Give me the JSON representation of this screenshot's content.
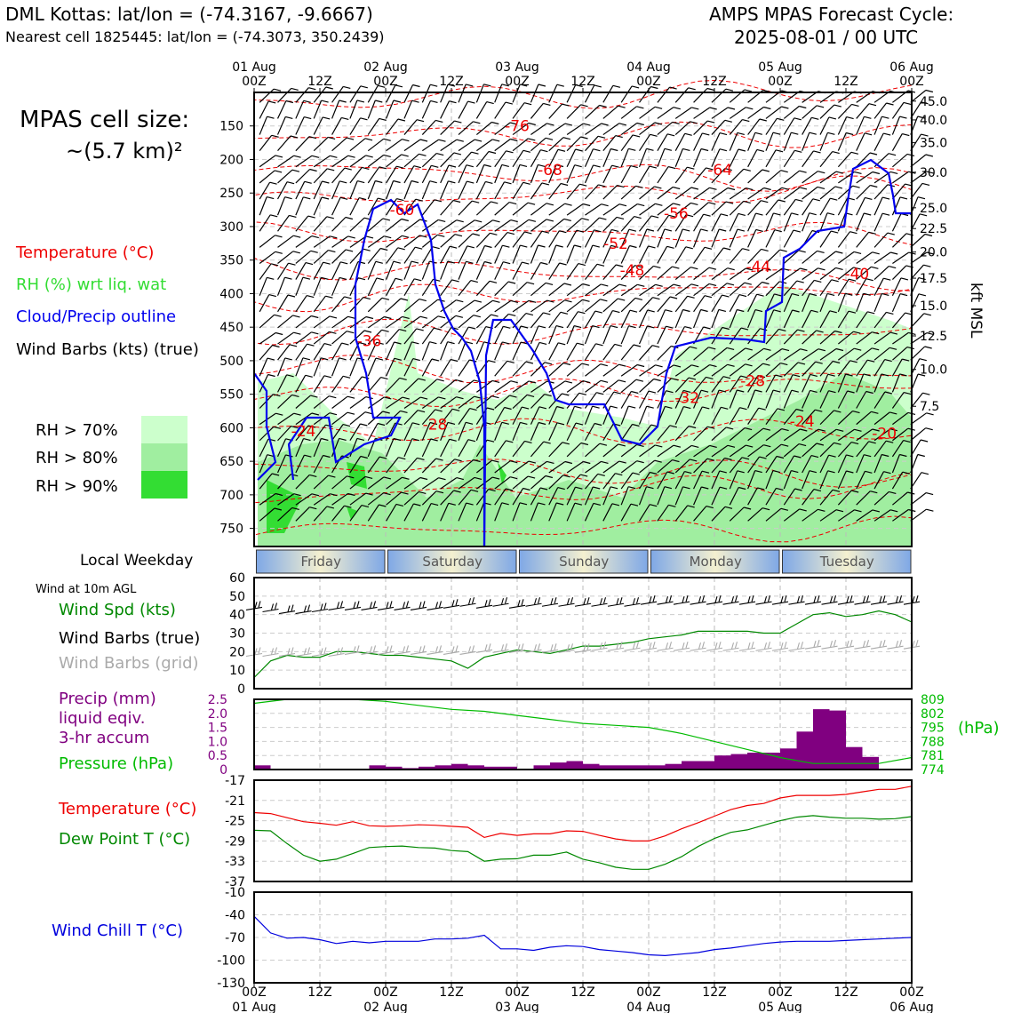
{
  "header": {
    "left_line1": "DML Kottas: lat/lon = (-74.3167, -9.6667)",
    "left_line2": "Nearest cell 1825445: lat/lon = (-74.3073, 350.2439)",
    "right_line1": "AMPS MPAS Forecast Cycle:",
    "right_line2": "2025-08-01 / 00 UTC"
  },
  "legend": {
    "cell_size_line1": "MPAS cell size:",
    "cell_size_line2": "~(5.7 km)²",
    "temperature": "Temperature (°C)",
    "rh": "RH (%) wrt liq. wat",
    "cloud": "Cloud/Precip outline",
    "wind": "Wind Barbs (kts) (true)",
    "rh70": "RH > 70%",
    "rh80": "RH > 80%",
    "rh90": "RH > 90%",
    "local_weekday": "Local Weekday",
    "wind10m_title": "Wind at 10m AGL",
    "wind_spd": "Wind Spd (kts)",
    "barbs_true": "Wind Barbs (true)",
    "barbs_grid": "Wind Barbs (grid)",
    "precip1": "Precip (mm)",
    "precip2": "liquid eqiv.",
    "precip3": "3-hr accum",
    "pressure": "Pressure (hPa)",
    "pressure_unit": "(hPa)",
    "temp2": "Temperature (°C)",
    "dewpoint": "Dew Point T (°C)",
    "windchill": "Wind Chill T (°C)",
    "kft": "kft MSL"
  },
  "colors": {
    "temp": "#ee0000",
    "rh70": "#ccffcc",
    "rh80": "#a0eea0",
    "rh90": "#33dd33",
    "cloud": "#0000ee",
    "precip": "#800080",
    "pressure": "#00bb00",
    "dew": "#008800",
    "chill": "#0000dd",
    "grid_barb": "#aaaaaa"
  },
  "chart_data": [
    {
      "type": "heatmap",
      "name": "cross-section",
      "top_ticks": [
        {
          "h": 0,
          "a": "01 Aug",
          "b": "00Z"
        },
        {
          "h": 12,
          "a": "",
          "b": "12Z"
        },
        {
          "h": 24,
          "a": "02 Aug",
          "b": "00Z"
        },
        {
          "h": 36,
          "a": "",
          "b": "12Z"
        },
        {
          "h": 48,
          "a": "03 Aug",
          "b": "00Z"
        },
        {
          "h": 60,
          "a": "",
          "b": "12Z"
        },
        {
          "h": 72,
          "a": "04 Aug",
          "b": "00Z"
        },
        {
          "h": 84,
          "a": "",
          "b": "12Z"
        },
        {
          "h": 96,
          "a": "05 Aug",
          "b": "00Z"
        },
        {
          "h": 108,
          "a": "",
          "b": "12Z"
        },
        {
          "h": 120,
          "a": "06 Aug",
          "b": "00Z"
        }
      ],
      "pressure_ticks": [
        150,
        200,
        250,
        300,
        350,
        400,
        450,
        500,
        550,
        600,
        650,
        700,
        750
      ],
      "kft_ticks": [
        {
          "p": 113,
          "label": "45.0"
        },
        {
          "p": 141,
          "label": "40.0"
        },
        {
          "p": 175,
          "label": "35.0"
        },
        {
          "p": 219,
          "label": "30.0"
        },
        {
          "p": 272,
          "label": "25.0"
        },
        {
          "p": 303,
          "label": "22.5"
        },
        {
          "p": 338,
          "label": "20.0"
        },
        {
          "p": 377,
          "label": "17.5"
        },
        {
          "p": 418,
          "label": "15.0"
        },
        {
          "p": 463,
          "label": "12.5"
        },
        {
          "p": 513,
          "label": "10.0"
        },
        {
          "p": 568,
          "label": "7.5"
        }
      ],
      "temp_labels": [
        {
          "h": 48,
          "p": 150,
          "v": "-76"
        },
        {
          "h": 54,
          "p": 215,
          "v": "-68"
        },
        {
          "h": 85,
          "p": 215,
          "v": "-64"
        },
        {
          "h": 77,
          "p": 280,
          "v": "-56"
        },
        {
          "h": 27,
          "p": 275,
          "v": "-60"
        },
        {
          "h": 66,
          "p": 325,
          "v": "-52"
        },
        {
          "h": 69,
          "p": 365,
          "v": "-48"
        },
        {
          "h": 92,
          "p": 360,
          "v": "-44"
        },
        {
          "h": 110,
          "p": 370,
          "v": "-40"
        },
        {
          "h": 21,
          "p": 470,
          "v": "-36"
        },
        {
          "h": 91,
          "p": 530,
          "v": "-28"
        },
        {
          "h": 79,
          "p": 555,
          "v": "-32"
        },
        {
          "h": 100,
          "p": 590,
          "v": "-24"
        },
        {
          "h": 9,
          "p": 605,
          "v": "-24"
        },
        {
          "h": 33,
          "p": 595,
          "v": "-28"
        },
        {
          "h": 115,
          "p": 608,
          "v": "-20"
        }
      ],
      "weekdays": [
        "Friday",
        "Saturday",
        "Sunday",
        "Monday",
        "Tuesday"
      ]
    },
    {
      "type": "line",
      "name": "wind-10m",
      "ylim": [
        0,
        60
      ],
      "yticks": [
        0,
        10,
        20,
        30,
        40,
        50,
        60
      ],
      "x_hours": [
        0,
        3,
        6,
        9,
        12,
        15,
        18,
        21,
        24,
        27,
        30,
        33,
        36,
        39,
        42,
        45,
        48,
        51,
        54,
        57,
        60,
        63,
        66,
        69,
        72,
        75,
        78,
        81,
        84,
        87,
        90,
        93,
        96,
        99,
        102,
        105,
        108,
        111,
        114,
        117,
        120
      ],
      "wind_speed": [
        6,
        15,
        18,
        17,
        17,
        20,
        20,
        19,
        18,
        18,
        17,
        16,
        15,
        11,
        17,
        19,
        21,
        20,
        19,
        21,
        23,
        23,
        24,
        25,
        27,
        28,
        29,
        31,
        31,
        31,
        31,
        30,
        30,
        35,
        40,
        41,
        39,
        40,
        42,
        40,
        36
      ],
      "barb_true_speed": [
        43,
        42,
        41,
        41,
        42,
        43,
        43,
        43,
        43,
        43,
        43,
        43,
        44,
        45,
        44,
        45,
        44,
        45,
        45,
        45,
        45,
        45,
        45,
        45,
        46,
        46,
        46,
        46,
        46,
        46,
        46,
        46,
        46,
        46,
        46,
        46,
        46,
        46,
        46,
        46,
        46
      ],
      "barb_grid_speed": [
        18,
        18,
        18,
        18,
        18,
        18,
        19,
        19,
        19,
        19,
        19,
        19,
        19,
        19,
        20,
        20,
        20,
        20,
        20,
        20,
        20,
        21,
        21,
        21,
        21,
        21,
        21,
        21,
        21,
        21,
        21,
        21,
        21,
        21,
        22,
        22,
        22,
        22,
        22,
        22,
        22
      ]
    },
    {
      "type": "bar",
      "name": "precip-pressure",
      "precip_ylim": [
        0,
        2.5
      ],
      "precip_ticks": [
        "0",
        "0.5",
        "1.0",
        "1.5",
        "2.0",
        "2.5"
      ],
      "pressure_ticks": [
        "774",
        "781",
        "788",
        "795",
        "802",
        "809"
      ],
      "pressure_ylim": [
        774,
        809
      ],
      "precip_hours": [
        0,
        3,
        6,
        9,
        12,
        15,
        18,
        21,
        24,
        27,
        30,
        33,
        36,
        39,
        42,
        45,
        48,
        51,
        54,
        57,
        60,
        63,
        66,
        69,
        72,
        75,
        78,
        81,
        84,
        87,
        90,
        93,
        96,
        99,
        102,
        105,
        108,
        111,
        114,
        117
      ],
      "precip_values": [
        0.15,
        0.0,
        0.0,
        0.0,
        0.0,
        0.0,
        0.0,
        0.15,
        0.1,
        0.05,
        0.1,
        0.15,
        0.2,
        0.15,
        0.1,
        0.1,
        0.0,
        0.15,
        0.25,
        0.3,
        0.2,
        0.15,
        0.15,
        0.15,
        0.15,
        0.2,
        0.3,
        0.3,
        0.5,
        0.55,
        0.6,
        0.6,
        0.75,
        1.35,
        2.15,
        2.1,
        0.8,
        0.45,
        0.0,
        0.0
      ],
      "pressure_hours": [
        0,
        6,
        12,
        18,
        24,
        30,
        36,
        42,
        48,
        54,
        60,
        66,
        72,
        78,
        84,
        90,
        96,
        102,
        108,
        114,
        120
      ],
      "pressure_values": [
        807,
        809,
        809,
        809,
        808,
        806,
        804,
        803,
        801,
        799,
        797,
        796,
        795,
        792,
        788,
        784,
        780,
        777,
        777,
        777,
        780
      ]
    },
    {
      "type": "line",
      "name": "temperature-dewpoint",
      "ylim": [
        -37,
        -17
      ],
      "yticks": [
        -17,
        -21,
        -25,
        -29,
        -33,
        -37
      ],
      "x_hours": [
        0,
        3,
        6,
        9,
        12,
        15,
        18,
        21,
        24,
        27,
        30,
        33,
        36,
        39,
        42,
        45,
        48,
        51,
        54,
        57,
        60,
        63,
        66,
        69,
        72,
        75,
        78,
        81,
        84,
        87,
        90,
        93,
        96,
        99,
        102,
        105,
        108,
        111,
        114,
        117,
        120
      ],
      "temperature": [
        -23.4,
        -23.6,
        -24.4,
        -25.2,
        -25.5,
        -25.9,
        -25.2,
        -26.0,
        -26.1,
        -26.0,
        -25.8,
        -25.9,
        -26.1,
        -26.3,
        -28.3,
        -27.5,
        -27.9,
        -27.6,
        -27.6,
        -27.0,
        -27.1,
        -27.9,
        -28.6,
        -29.0,
        -29.0,
        -28.0,
        -26.6,
        -25.4,
        -24.1,
        -22.8,
        -22.0,
        -21.6,
        -20.5,
        -20.0,
        -20.0,
        -20.0,
        -19.8,
        -19.3,
        -18.8,
        -18.8,
        -18.2
      ],
      "dew_point": [
        -26.9,
        -27.0,
        -29.5,
        -31.8,
        -33.0,
        -32.6,
        -31.5,
        -30.3,
        -30.1,
        -30.0,
        -30.3,
        -30.4,
        -30.9,
        -31.1,
        -33.0,
        -32.6,
        -32.5,
        -31.8,
        -31.8,
        -31.2,
        -32.6,
        -33.3,
        -34.2,
        -34.6,
        -34.6,
        -33.6,
        -32.1,
        -30.1,
        -28.5,
        -27.3,
        -26.8,
        -25.9,
        -25.0,
        -24.3,
        -24.0,
        -24.3,
        -24.5,
        -24.5,
        -24.7,
        -24.6,
        -24.2
      ]
    },
    {
      "type": "line",
      "name": "wind-chill",
      "ylim": [
        -130,
        -10
      ],
      "yticks": [
        -10,
        -40,
        -70,
        -100,
        -130
      ],
      "x_hours": [
        0,
        3,
        6,
        9,
        12,
        15,
        18,
        21,
        24,
        27,
        30,
        33,
        36,
        39,
        42,
        45,
        48,
        51,
        54,
        57,
        60,
        63,
        66,
        69,
        72,
        75,
        78,
        81,
        84,
        87,
        90,
        93,
        96,
        99,
        102,
        105,
        108,
        111,
        114,
        117,
        120
      ],
      "wind_chill": [
        -42,
        -64,
        -71,
        -70,
        -73,
        -78,
        -75,
        -77,
        -75,
        -75,
        -75,
        -72,
        -72,
        -71,
        -67,
        -85,
        -85,
        -87,
        -83,
        -81,
        -82,
        -86,
        -88,
        -90,
        -93,
        -94,
        -92,
        -90,
        -86,
        -84,
        -81,
        -78,
        -76,
        -75,
        -75,
        -75,
        -74,
        -73,
        -72,
        -71,
        -70
      ],
      "bottom_ticks": [
        {
          "h": 0,
          "a": "00Z",
          "b": "01 Aug"
        },
        {
          "h": 12,
          "a": "12Z",
          "b": ""
        },
        {
          "h": 24,
          "a": "00Z",
          "b": "02 Aug"
        },
        {
          "h": 36,
          "a": "12Z",
          "b": ""
        },
        {
          "h": 48,
          "a": "00Z",
          "b": "03 Aug"
        },
        {
          "h": 60,
          "a": "12Z",
          "b": ""
        },
        {
          "h": 72,
          "a": "00Z",
          "b": "04 Aug"
        },
        {
          "h": 84,
          "a": "12Z",
          "b": ""
        },
        {
          "h": 96,
          "a": "00Z",
          "b": "05 Aug"
        },
        {
          "h": 108,
          "a": "12Z",
          "b": ""
        },
        {
          "h": 120,
          "a": "00Z",
          "b": "06 Aug"
        }
      ]
    }
  ]
}
